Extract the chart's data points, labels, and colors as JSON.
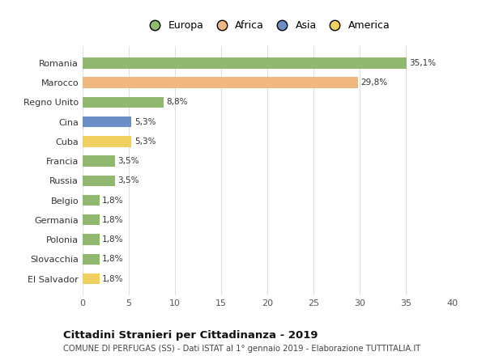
{
  "categories": [
    "El Salvador",
    "Slovacchia",
    "Polonia",
    "Germania",
    "Belgio",
    "Russia",
    "Francia",
    "Cuba",
    "Cina",
    "Regno Unito",
    "Marocco",
    "Romania"
  ],
  "values": [
    1.8,
    1.8,
    1.8,
    1.8,
    1.8,
    3.5,
    3.5,
    5.3,
    5.3,
    8.8,
    29.8,
    35.1
  ],
  "colors": [
    "#f0d060",
    "#90b870",
    "#90b870",
    "#90b870",
    "#90b870",
    "#90b870",
    "#90b870",
    "#f0d060",
    "#6b8ec7",
    "#90b870",
    "#f0b880",
    "#90b870"
  ],
  "bar_labels": [
    "1,8%",
    "1,8%",
    "1,8%",
    "1,8%",
    "1,8%",
    "3,5%",
    "3,5%",
    "5,3%",
    "5,3%",
    "8,8%",
    "29,8%",
    "35,1%"
  ],
  "xlim": [
    0,
    40
  ],
  "xticks": [
    0,
    5,
    10,
    15,
    20,
    25,
    30,
    35,
    40
  ],
  "title": "Cittadini Stranieri per Cittadinanza - 2019",
  "subtitle": "COMUNE DI PERFUGAS (SS) - Dati ISTAT al 1° gennaio 2019 - Elaborazione TUTTITALIA.IT",
  "legend_labels": [
    "Europa",
    "Africa",
    "Asia",
    "America"
  ],
  "legend_colors": [
    "#90b870",
    "#f0b880",
    "#6b8ec7",
    "#f0d060"
  ],
  "bg_color": "#ffffff",
  "grid_color": "#e0e0e0",
  "bar_height": 0.55
}
